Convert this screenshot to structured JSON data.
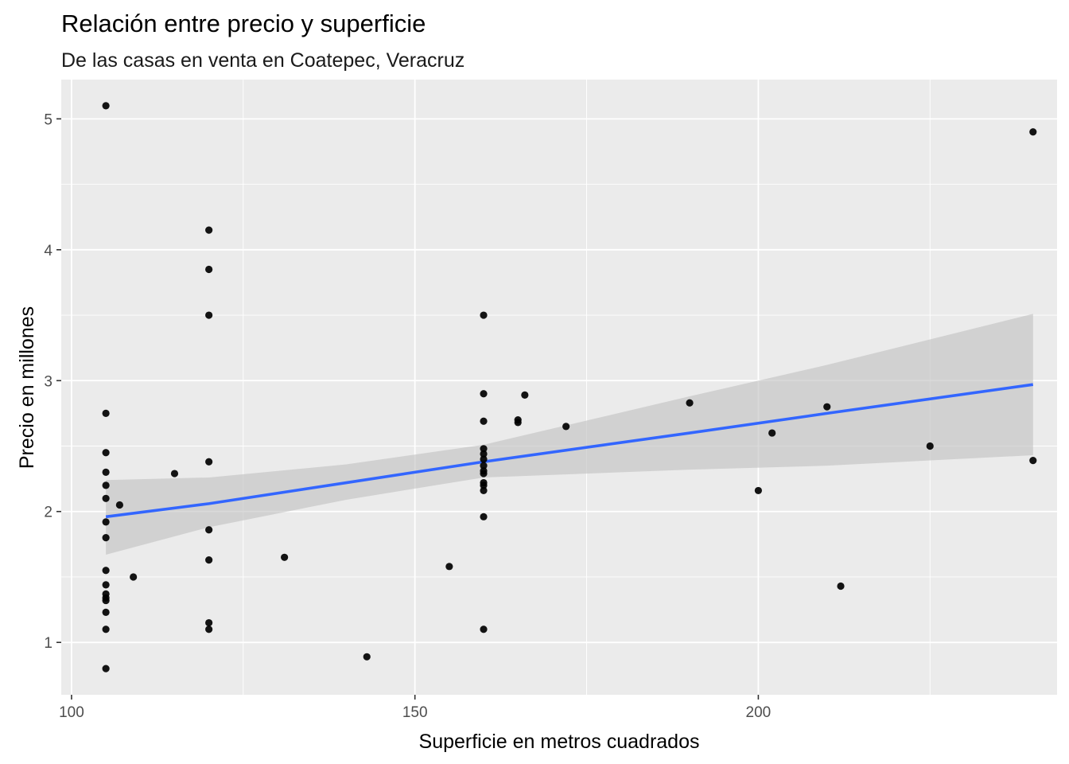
{
  "chart_data": {
    "type": "scatter",
    "title": "Relación entre precio y superficie",
    "subtitle": "De las casas en venta en Coatepec, Veracruz",
    "xlabel": "Superficie en metros cuadrados",
    "ylabel": "Precio en millones",
    "xlim": [
      98.5,
      243.5
    ],
    "ylim": [
      0.6,
      5.3
    ],
    "x_ticks": [
      100,
      150,
      200
    ],
    "y_ticks": [
      1,
      2,
      3,
      4,
      5
    ],
    "x_tick_labels": [
      "100",
      "150",
      "200"
    ],
    "y_tick_labels": [
      "1",
      "2",
      "3",
      "4",
      "5"
    ],
    "grid": true,
    "colors": {
      "panel_background": "#ebebeb",
      "grid": "#ffffff",
      "points": "#000000",
      "fit_line": "#3366ff",
      "confidence_band": "#bfbfbf"
    },
    "points": [
      {
        "x": 105,
        "y": 5.1
      },
      {
        "x": 105,
        "y": 2.75
      },
      {
        "x": 105,
        "y": 2.45
      },
      {
        "x": 105,
        "y": 2.3
      },
      {
        "x": 105,
        "y": 2.2
      },
      {
        "x": 105,
        "y": 2.1
      },
      {
        "x": 105,
        "y": 1.92
      },
      {
        "x": 105,
        "y": 1.8
      },
      {
        "x": 105,
        "y": 1.55
      },
      {
        "x": 105,
        "y": 1.44
      },
      {
        "x": 105,
        "y": 1.37
      },
      {
        "x": 105,
        "y": 1.34
      },
      {
        "x": 105,
        "y": 1.32
      },
      {
        "x": 105,
        "y": 1.23
      },
      {
        "x": 105,
        "y": 1.1
      },
      {
        "x": 105,
        "y": 0.8
      },
      {
        "x": 107,
        "y": 2.05
      },
      {
        "x": 109,
        "y": 1.5
      },
      {
        "x": 115,
        "y": 2.29
      },
      {
        "x": 120,
        "y": 4.15
      },
      {
        "x": 120,
        "y": 3.85
      },
      {
        "x": 120,
        "y": 3.5
      },
      {
        "x": 120,
        "y": 2.38
      },
      {
        "x": 120,
        "y": 1.86
      },
      {
        "x": 120,
        "y": 1.63
      },
      {
        "x": 120,
        "y": 1.15
      },
      {
        "x": 120,
        "y": 1.1
      },
      {
        "x": 131,
        "y": 1.65
      },
      {
        "x": 143,
        "y": 0.89
      },
      {
        "x": 155,
        "y": 1.58
      },
      {
        "x": 160,
        "y": 3.5
      },
      {
        "x": 160,
        "y": 2.9
      },
      {
        "x": 160,
        "y": 2.69
      },
      {
        "x": 160,
        "y": 2.48
      },
      {
        "x": 160,
        "y": 2.44
      },
      {
        "x": 160,
        "y": 2.4
      },
      {
        "x": 160,
        "y": 2.35
      },
      {
        "x": 160,
        "y": 2.31
      },
      {
        "x": 160,
        "y": 2.29
      },
      {
        "x": 160,
        "y": 2.22
      },
      {
        "x": 160,
        "y": 2.2
      },
      {
        "x": 160,
        "y": 2.16
      },
      {
        "x": 160,
        "y": 1.96
      },
      {
        "x": 160,
        "y": 1.1
      },
      {
        "x": 165,
        "y": 2.7
      },
      {
        "x": 165,
        "y": 2.68
      },
      {
        "x": 166,
        "y": 2.89
      },
      {
        "x": 172,
        "y": 2.65
      },
      {
        "x": 190,
        "y": 2.83
      },
      {
        "x": 200,
        "y": 2.16
      },
      {
        "x": 202,
        "y": 2.6
      },
      {
        "x": 210,
        "y": 2.8
      },
      {
        "x": 212,
        "y": 1.43
      },
      {
        "x": 225,
        "y": 2.5
      },
      {
        "x": 240,
        "y": 4.9
      },
      {
        "x": 240,
        "y": 2.39
      }
    ],
    "fit_line": [
      {
        "x": 105,
        "y": 1.96
      },
      {
        "x": 120,
        "y": 2.06
      },
      {
        "x": 140,
        "y": 2.22
      },
      {
        "x": 160,
        "y": 2.38
      },
      {
        "x": 190,
        "y": 2.6
      },
      {
        "x": 210,
        "y": 2.75
      },
      {
        "x": 240,
        "y": 2.97
      }
    ],
    "confidence_band": {
      "x": [
        105,
        120,
        140,
        160,
        190,
        210,
        240
      ],
      "lower": [
        1.67,
        1.88,
        2.09,
        2.26,
        2.32,
        2.35,
        2.43
      ],
      "upper": [
        2.24,
        2.26,
        2.36,
        2.51,
        2.88,
        3.12,
        3.51
      ]
    }
  }
}
